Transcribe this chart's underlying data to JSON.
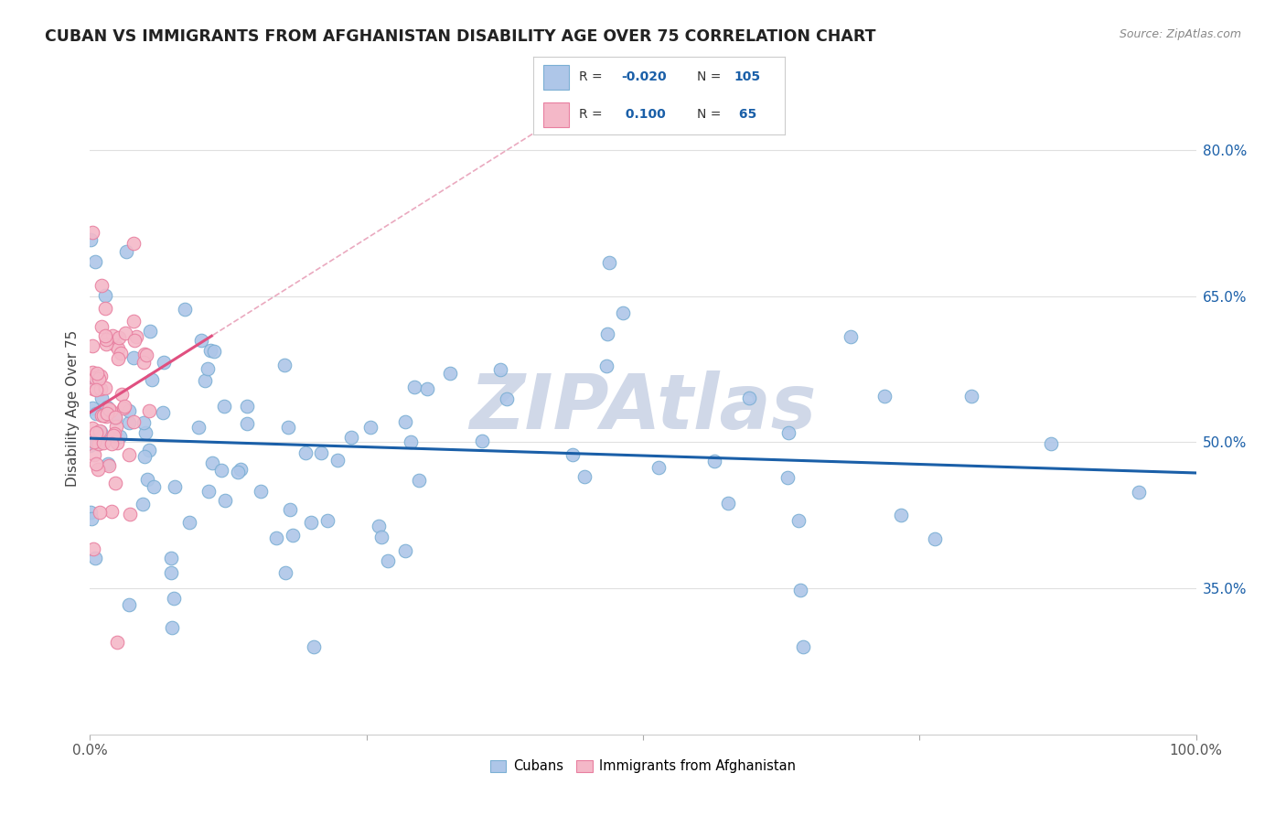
{
  "title": "CUBAN VS IMMIGRANTS FROM AFGHANISTAN DISABILITY AGE OVER 75 CORRELATION CHART",
  "source": "Source: ZipAtlas.com",
  "ylabel": "Disability Age Over 75",
  "xlim": [
    0.0,
    1.0
  ],
  "ylim": [
    0.2,
    0.87
  ],
  "ytick_vals": [
    0.35,
    0.5,
    0.65,
    0.8
  ],
  "ytick_labels": [
    "35.0%",
    "50.0%",
    "65.0%",
    "80.0%"
  ],
  "cubans_color_fill": "#aec6e8",
  "cubans_color_edge": "#7bafd4",
  "afghanistan_color_fill": "#f4b8c8",
  "afghanistan_color_edge": "#e87fa0",
  "trend_blue_color": "#1a5fa8",
  "trend_pink_color": "#e05080",
  "trend_dashed_color": "#e8a0b8",
  "watermark": "ZIPAtlas",
  "watermark_color": "#d0d8e8",
  "background_color": "#ffffff",
  "grid_color": "#e0e0e0",
  "legend_border_color": "#cccccc",
  "r_n_color": "#1a5fa8",
  "title_color": "#222222",
  "source_color": "#888888",
  "ylabel_color": "#444444"
}
